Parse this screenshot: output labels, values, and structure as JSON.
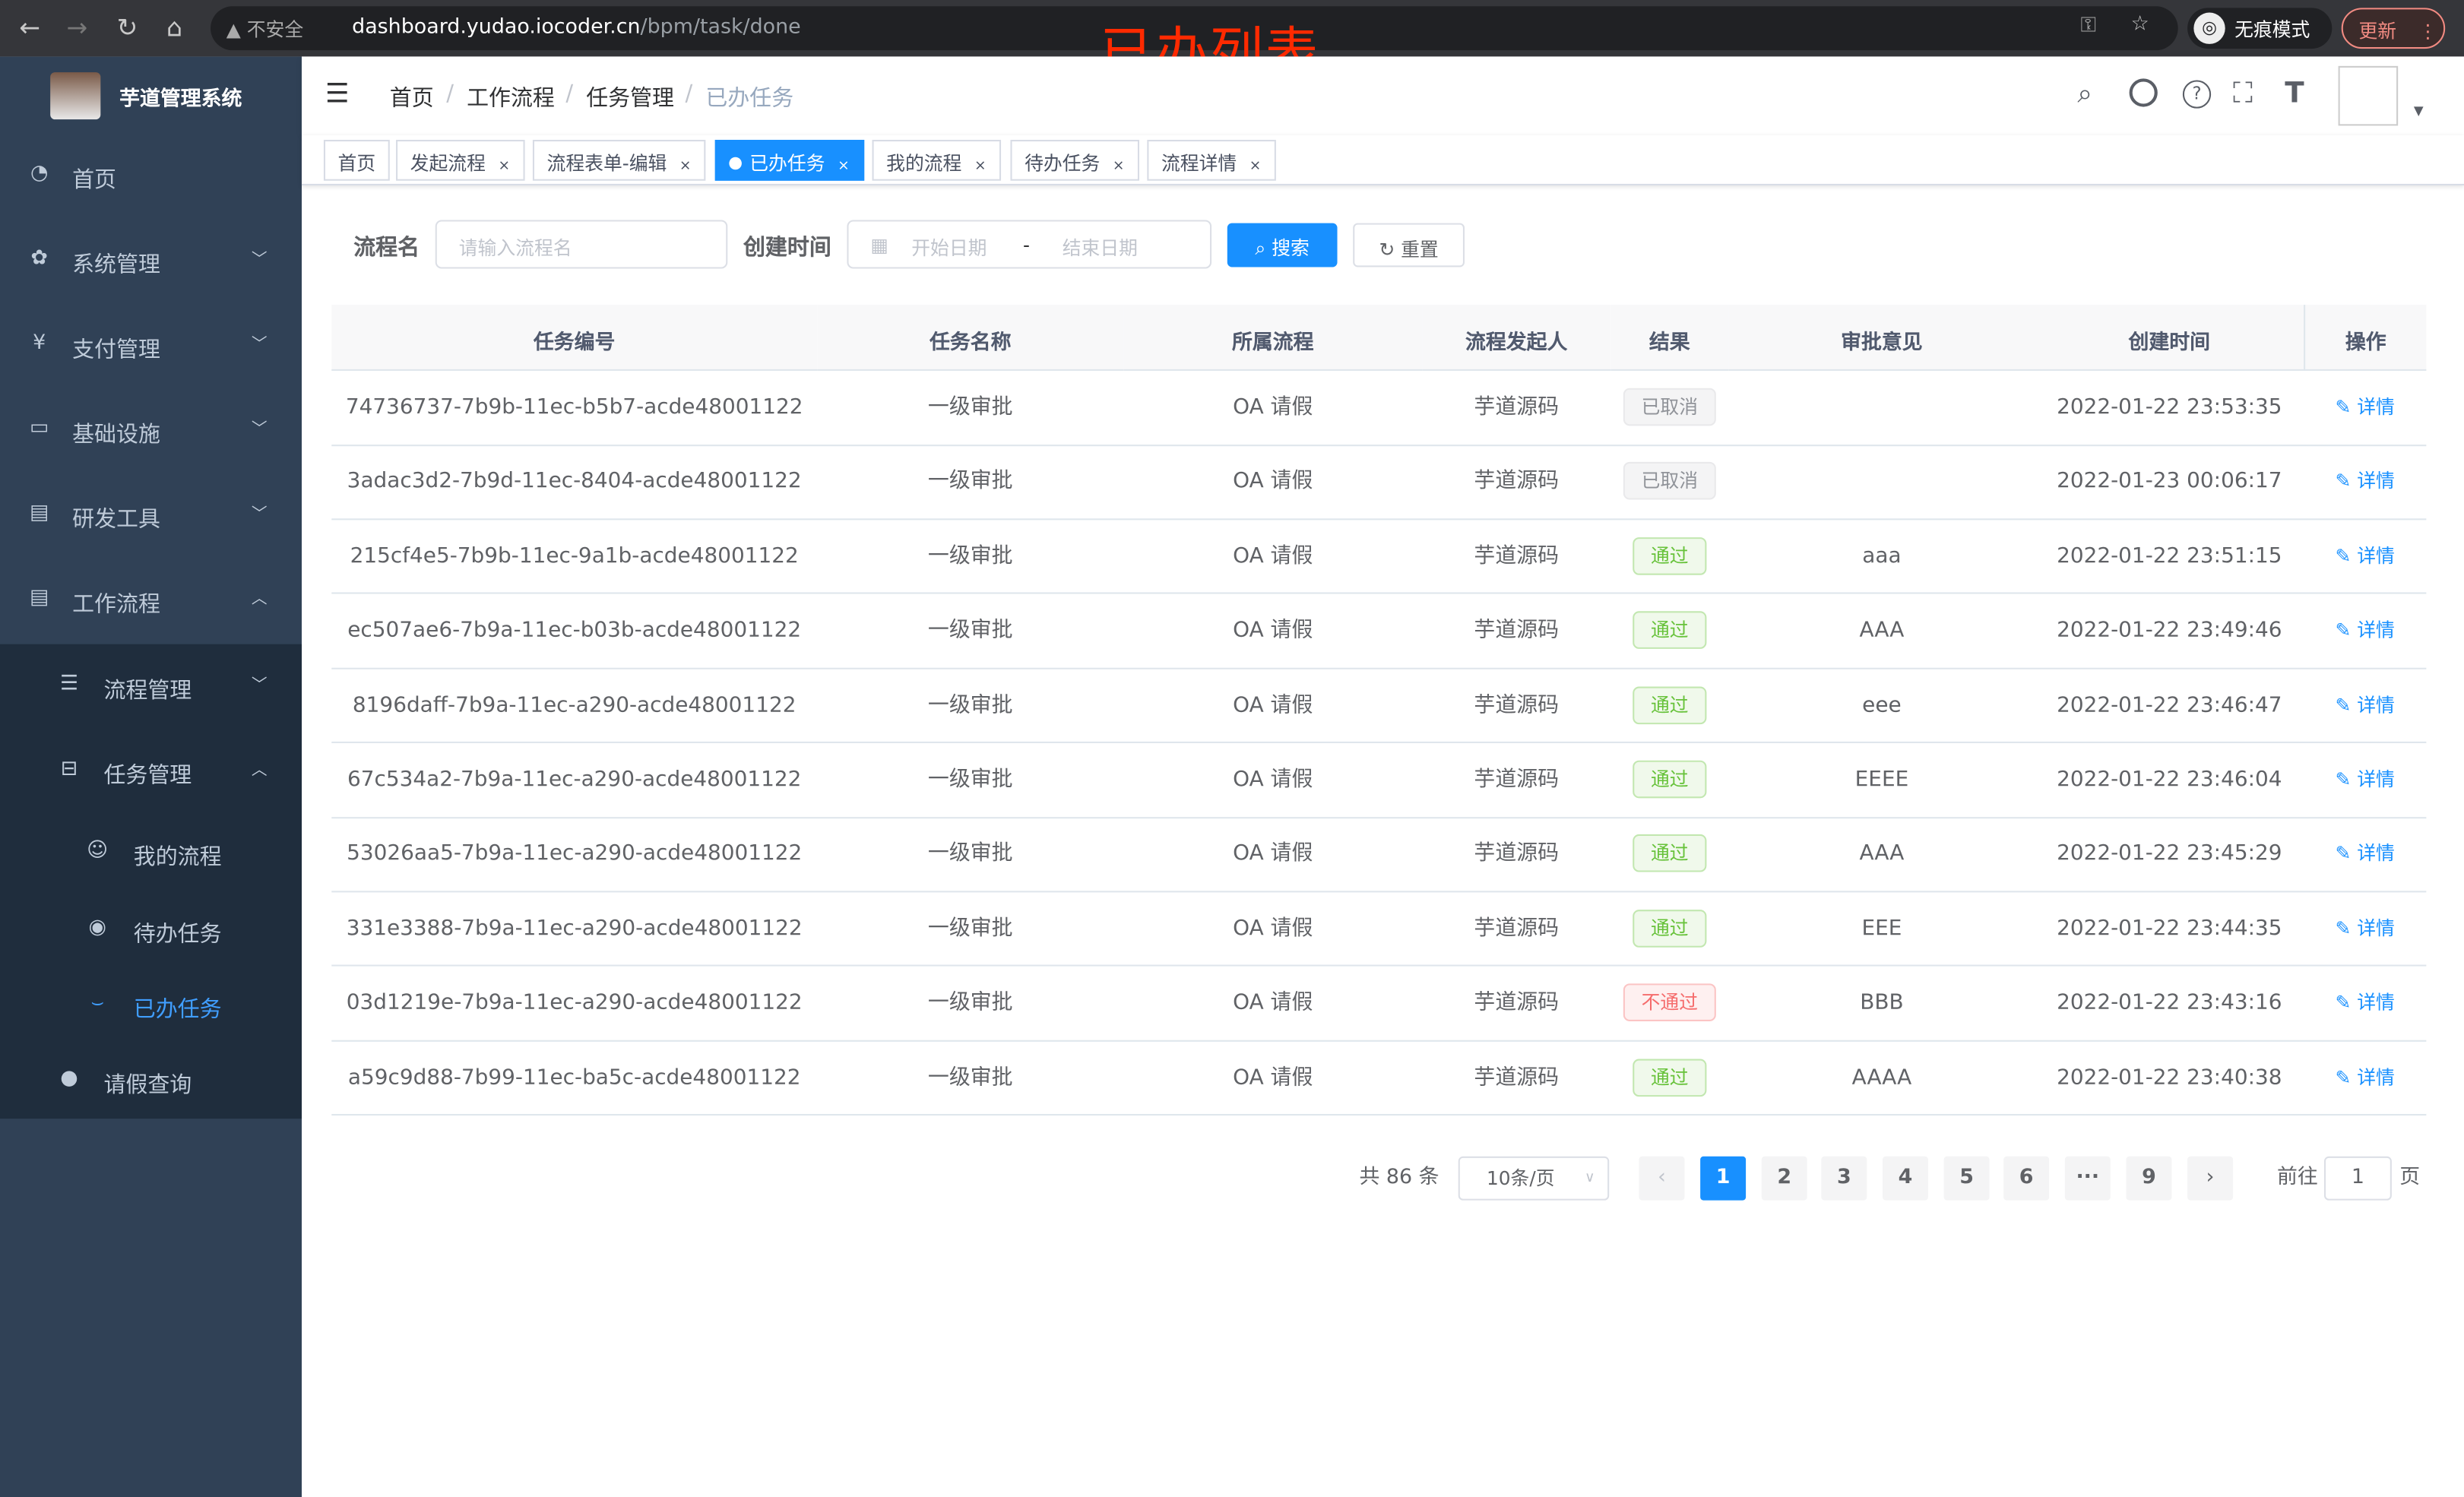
{
  "browser": {
    "security": "不安全",
    "url_host": "dashboard.yudao.iocoder.cn",
    "url_path": "/bpm/task/done",
    "incognito": "无痕模式",
    "update": "更新"
  },
  "annotation": "已办列表",
  "app": {
    "title": "芋道管理系统"
  },
  "sidebar": {
    "items": [
      {
        "label": "首页",
        "icon": "dashboard-icon"
      },
      {
        "label": "系统管理",
        "icon": "gear-icon"
      },
      {
        "label": "支付管理",
        "icon": "yen-icon"
      },
      {
        "label": "基础设施",
        "icon": "monitor-icon"
      },
      {
        "label": "研发工具",
        "icon": "toolbox-icon"
      },
      {
        "label": "工作流程",
        "icon": "toolbox-icon"
      }
    ],
    "sub": [
      {
        "label": "流程管理"
      },
      {
        "label": "任务管理"
      }
    ],
    "subsub": [
      {
        "label": "我的流程"
      },
      {
        "label": "待办任务"
      },
      {
        "label": "已办任务"
      }
    ],
    "leave": "请假查询",
    "active": "已办任务",
    "active_color": "#409eff"
  },
  "breadcrumb": [
    "首页",
    "工作流程",
    "任务管理",
    "已办任务"
  ],
  "tags": [
    {
      "label": "首页"
    },
    {
      "label": "发起流程"
    },
    {
      "label": "流程表单-编辑"
    },
    {
      "label": "已办任务",
      "active": true
    },
    {
      "label": "我的流程"
    },
    {
      "label": "待办任务"
    },
    {
      "label": "流程详情"
    }
  ],
  "search": {
    "name_label": "流程名",
    "name_placeholder": "请输入流程名",
    "time_label": "创建时间",
    "start_placeholder": "开始日期",
    "sep": "-",
    "end_placeholder": "结束日期",
    "search": "搜索",
    "reset": "重置"
  },
  "table": {
    "columns": [
      "任务编号",
      "任务名称",
      "所属流程",
      "流程发起人",
      "结果",
      "审批意见",
      "创建时间",
      "操作"
    ],
    "rows": [
      [
        "74736737-7b9b-11ec-b5b7-acde48001122",
        "一级审批",
        "OA 请假",
        "芋道源码",
        "已取消",
        "",
        "2022-01-22 23:53:35"
      ],
      [
        "3adac3d2-7b9d-11ec-8404-acde48001122",
        "一级审批",
        "OA 请假",
        "芋道源码",
        "已取消",
        "",
        "2022-01-23 00:06:17"
      ],
      [
        "215cf4e5-7b9b-11ec-9a1b-acde48001122",
        "一级审批",
        "OA 请假",
        "芋道源码",
        "通过",
        "aaa",
        "2022-01-22 23:51:15"
      ],
      [
        "ec507ae6-7b9a-11ec-b03b-acde48001122",
        "一级审批",
        "OA 请假",
        "芋道源码",
        "通过",
        "AAA",
        "2022-01-22 23:49:46"
      ],
      [
        "8196daff-7b9a-11ec-a290-acde48001122",
        "一级审批",
        "OA 请假",
        "芋道源码",
        "通过",
        "eee",
        "2022-01-22 23:46:47"
      ],
      [
        "67c534a2-7b9a-11ec-a290-acde48001122",
        "一级审批",
        "OA 请假",
        "芋道源码",
        "通过",
        "EEEE",
        "2022-01-22 23:46:04"
      ],
      [
        "53026aa5-7b9a-11ec-a290-acde48001122",
        "一级审批",
        "OA 请假",
        "芋道源码",
        "通过",
        "AAA",
        "2022-01-22 23:45:29"
      ],
      [
        "331e3388-7b9a-11ec-a290-acde48001122",
        "一级审批",
        "OA 请假",
        "芋道源码",
        "通过",
        "EEE",
        "2022-01-22 23:44:35"
      ],
      [
        "03d1219e-7b9a-11ec-a290-acde48001122",
        "一级审批",
        "OA 请假",
        "芋道源码",
        "不通过",
        "BBB",
        "2022-01-22 23:43:16"
      ],
      [
        "a59c9d88-7b99-11ec-ba5c-acde48001122",
        "一级审批",
        "OA 请假",
        "芋道源码",
        "通过",
        "AAAA",
        "2022-01-22 23:40:38"
      ]
    ],
    "action": "详情",
    "status_colors": {
      "已取消": "#909399",
      "通过": "#67c23a",
      "不通过": "#f56c6c"
    }
  },
  "pagination": {
    "total": "共 86 条",
    "page_size": "10条/页",
    "pages": [
      "1",
      "2",
      "3",
      "4",
      "5",
      "6",
      "···",
      "9"
    ],
    "current": "1",
    "goto_label": "前往",
    "goto_value": "1",
    "page_suffix": "页"
  },
  "accent": "#1890ff"
}
